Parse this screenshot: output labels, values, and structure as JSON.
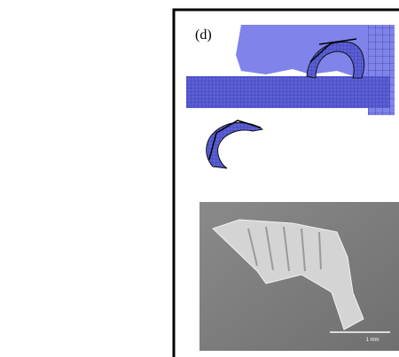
{
  "panel": {
    "label": "(d)"
  },
  "scale_bar": {
    "label": "1 mm"
  }
}
